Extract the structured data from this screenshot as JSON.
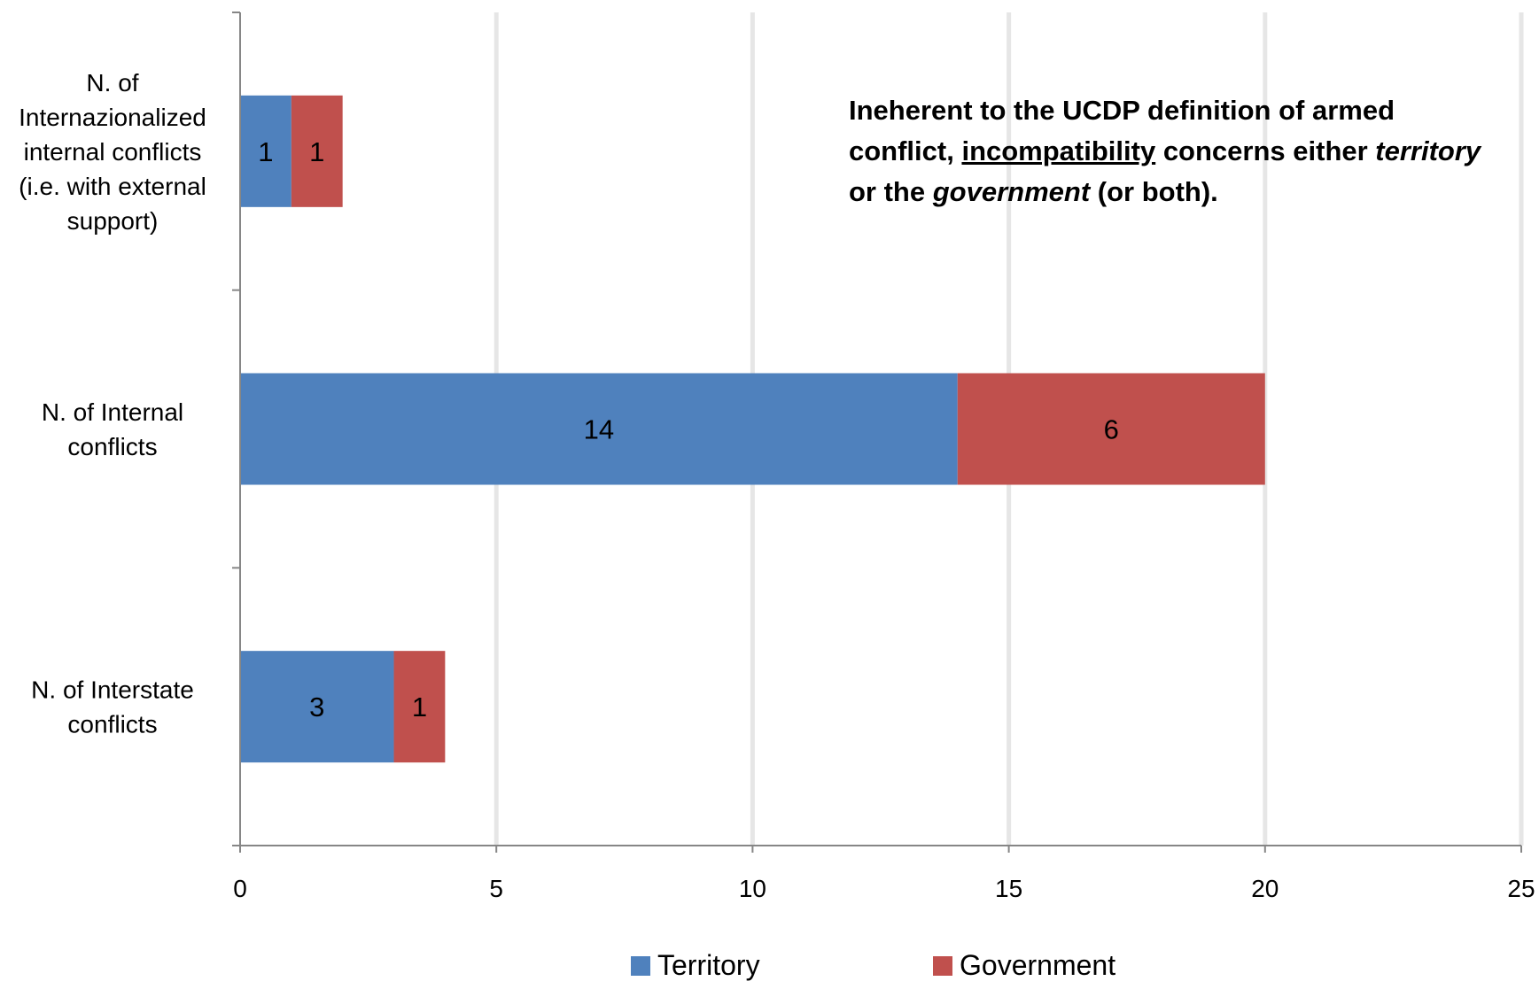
{
  "chart_data": {
    "type": "bar",
    "orientation": "horizontal",
    "stacked": true,
    "categories": [
      "N. of Internazionalized internal conflicts (i.e. with external support)",
      "N. of Internal conflicts",
      "N. of Interstate conflicts"
    ],
    "category_lines": [
      [
        "N. of",
        "Internazionalized",
        "internal conflicts",
        "(i.e. with external",
        "support)"
      ],
      [
        "N. of Internal",
        "conflicts"
      ],
      [
        "N. of Interstate",
        "conflicts"
      ]
    ],
    "series": [
      {
        "name": "Territory",
        "values": [
          1,
          14,
          3
        ],
        "color": "#4F81BD"
      },
      {
        "name": "Government",
        "values": [
          1,
          6,
          1
        ],
        "color": "#C0504D"
      }
    ],
    "xlim": [
      0,
      25
    ],
    "xticks": [
      0,
      5,
      10,
      15,
      20,
      25
    ],
    "xtick_labels": [
      "0",
      "5",
      "10",
      "15",
      "20",
      "25"
    ],
    "grid": "vertical",
    "legend_position": "bottom",
    "title": "",
    "xlabel": "",
    "ylabel": ""
  },
  "annotation": {
    "part1": "Ineherent to the UCDP definition of armed conflict, ",
    "underlined": "incompatibility",
    "part2": " concerns either ",
    "italic1": "territory",
    "part3": " or the ",
    "italic2": "government",
    "part4": " (or both)."
  }
}
